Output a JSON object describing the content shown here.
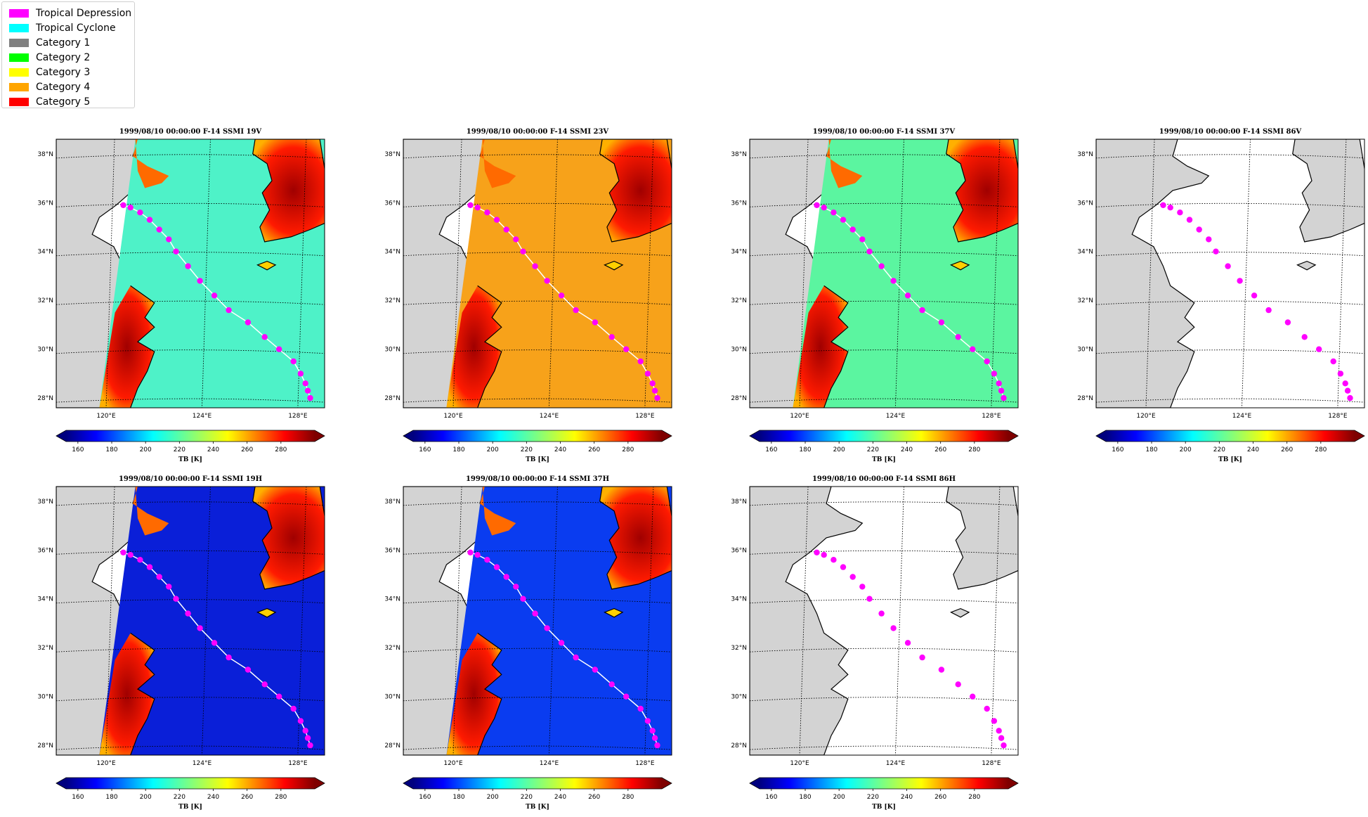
{
  "legend": [
    {
      "label": "Tropical Depression",
      "color": "#ff00ff"
    },
    {
      "label": "Tropical Cyclone",
      "color": "#00ffff"
    },
    {
      "label": "Category 1",
      "color": "#808080"
    },
    {
      "label": "Category 2",
      "color": "#00ff00"
    },
    {
      "label": "Category 3",
      "color": "#ffff00"
    },
    {
      "label": "Category 4",
      "color": "#ffa500"
    },
    {
      "label": "Category 5",
      "color": "#ff0000"
    }
  ],
  "map": {
    "lat_labels": [
      "38°N",
      "36°N",
      "34°N",
      "32°N",
      "30°N",
      "28°N"
    ],
    "lon_labels": [
      "120°E",
      "124°E",
      "128°E"
    ],
    "land_color": "#d3d3d3",
    "track_color": "#ff00ff"
  },
  "colorbar": {
    "label": "TB [K]",
    "ticks": [
      "160",
      "180",
      "200",
      "220",
      "240",
      "260",
      "280"
    ],
    "colormap": "jet"
  },
  "panels": [
    {
      "title": "1999/08/10 00:00:00  F-14 SSMI 19V",
      "base": "#4ef2c8",
      "has_swath": true
    },
    {
      "title": "1999/08/10 00:00:00  F-14 SSMI 23V",
      "base": "#f7a21a",
      "has_swath": true
    },
    {
      "title": "1999/08/10 00:00:00  F-14 SSMI 37V",
      "base": "#5bf5a0",
      "has_swath": true
    },
    {
      "title": "1999/08/10 00:00:00  F-14 SSMI 86V",
      "base": "#ffffff",
      "has_swath": false
    },
    {
      "title": "1999/08/10 00:00:00  F-14 SSMI 19H",
      "base": "#0a1fd8",
      "has_swath": true
    },
    {
      "title": "1999/08/10 00:00:00  F-14 SSMI 37H",
      "base": "#0a3cf0",
      "has_swath": true
    },
    {
      "title": "1999/08/10 00:00:00  F-14 SSMI 86H",
      "base": "#ffffff",
      "has_swath": false
    }
  ],
  "track": {
    "lon": [
      120.6,
      120.9,
      121.3,
      121.7,
      122.1,
      122.5,
      122.8,
      123.3,
      123.8,
      124.4,
      125.0,
      125.8,
      126.5,
      127.1,
      127.7,
      128.0,
      128.2,
      128.3,
      128.4
    ],
    "lat": [
      35.9,
      35.8,
      35.6,
      35.3,
      34.9,
      34.5,
      34.0,
      33.4,
      32.8,
      32.2,
      31.6,
      31.1,
      30.5,
      30.0,
      29.5,
      29.0,
      28.6,
      28.3,
      28.0
    ]
  }
}
